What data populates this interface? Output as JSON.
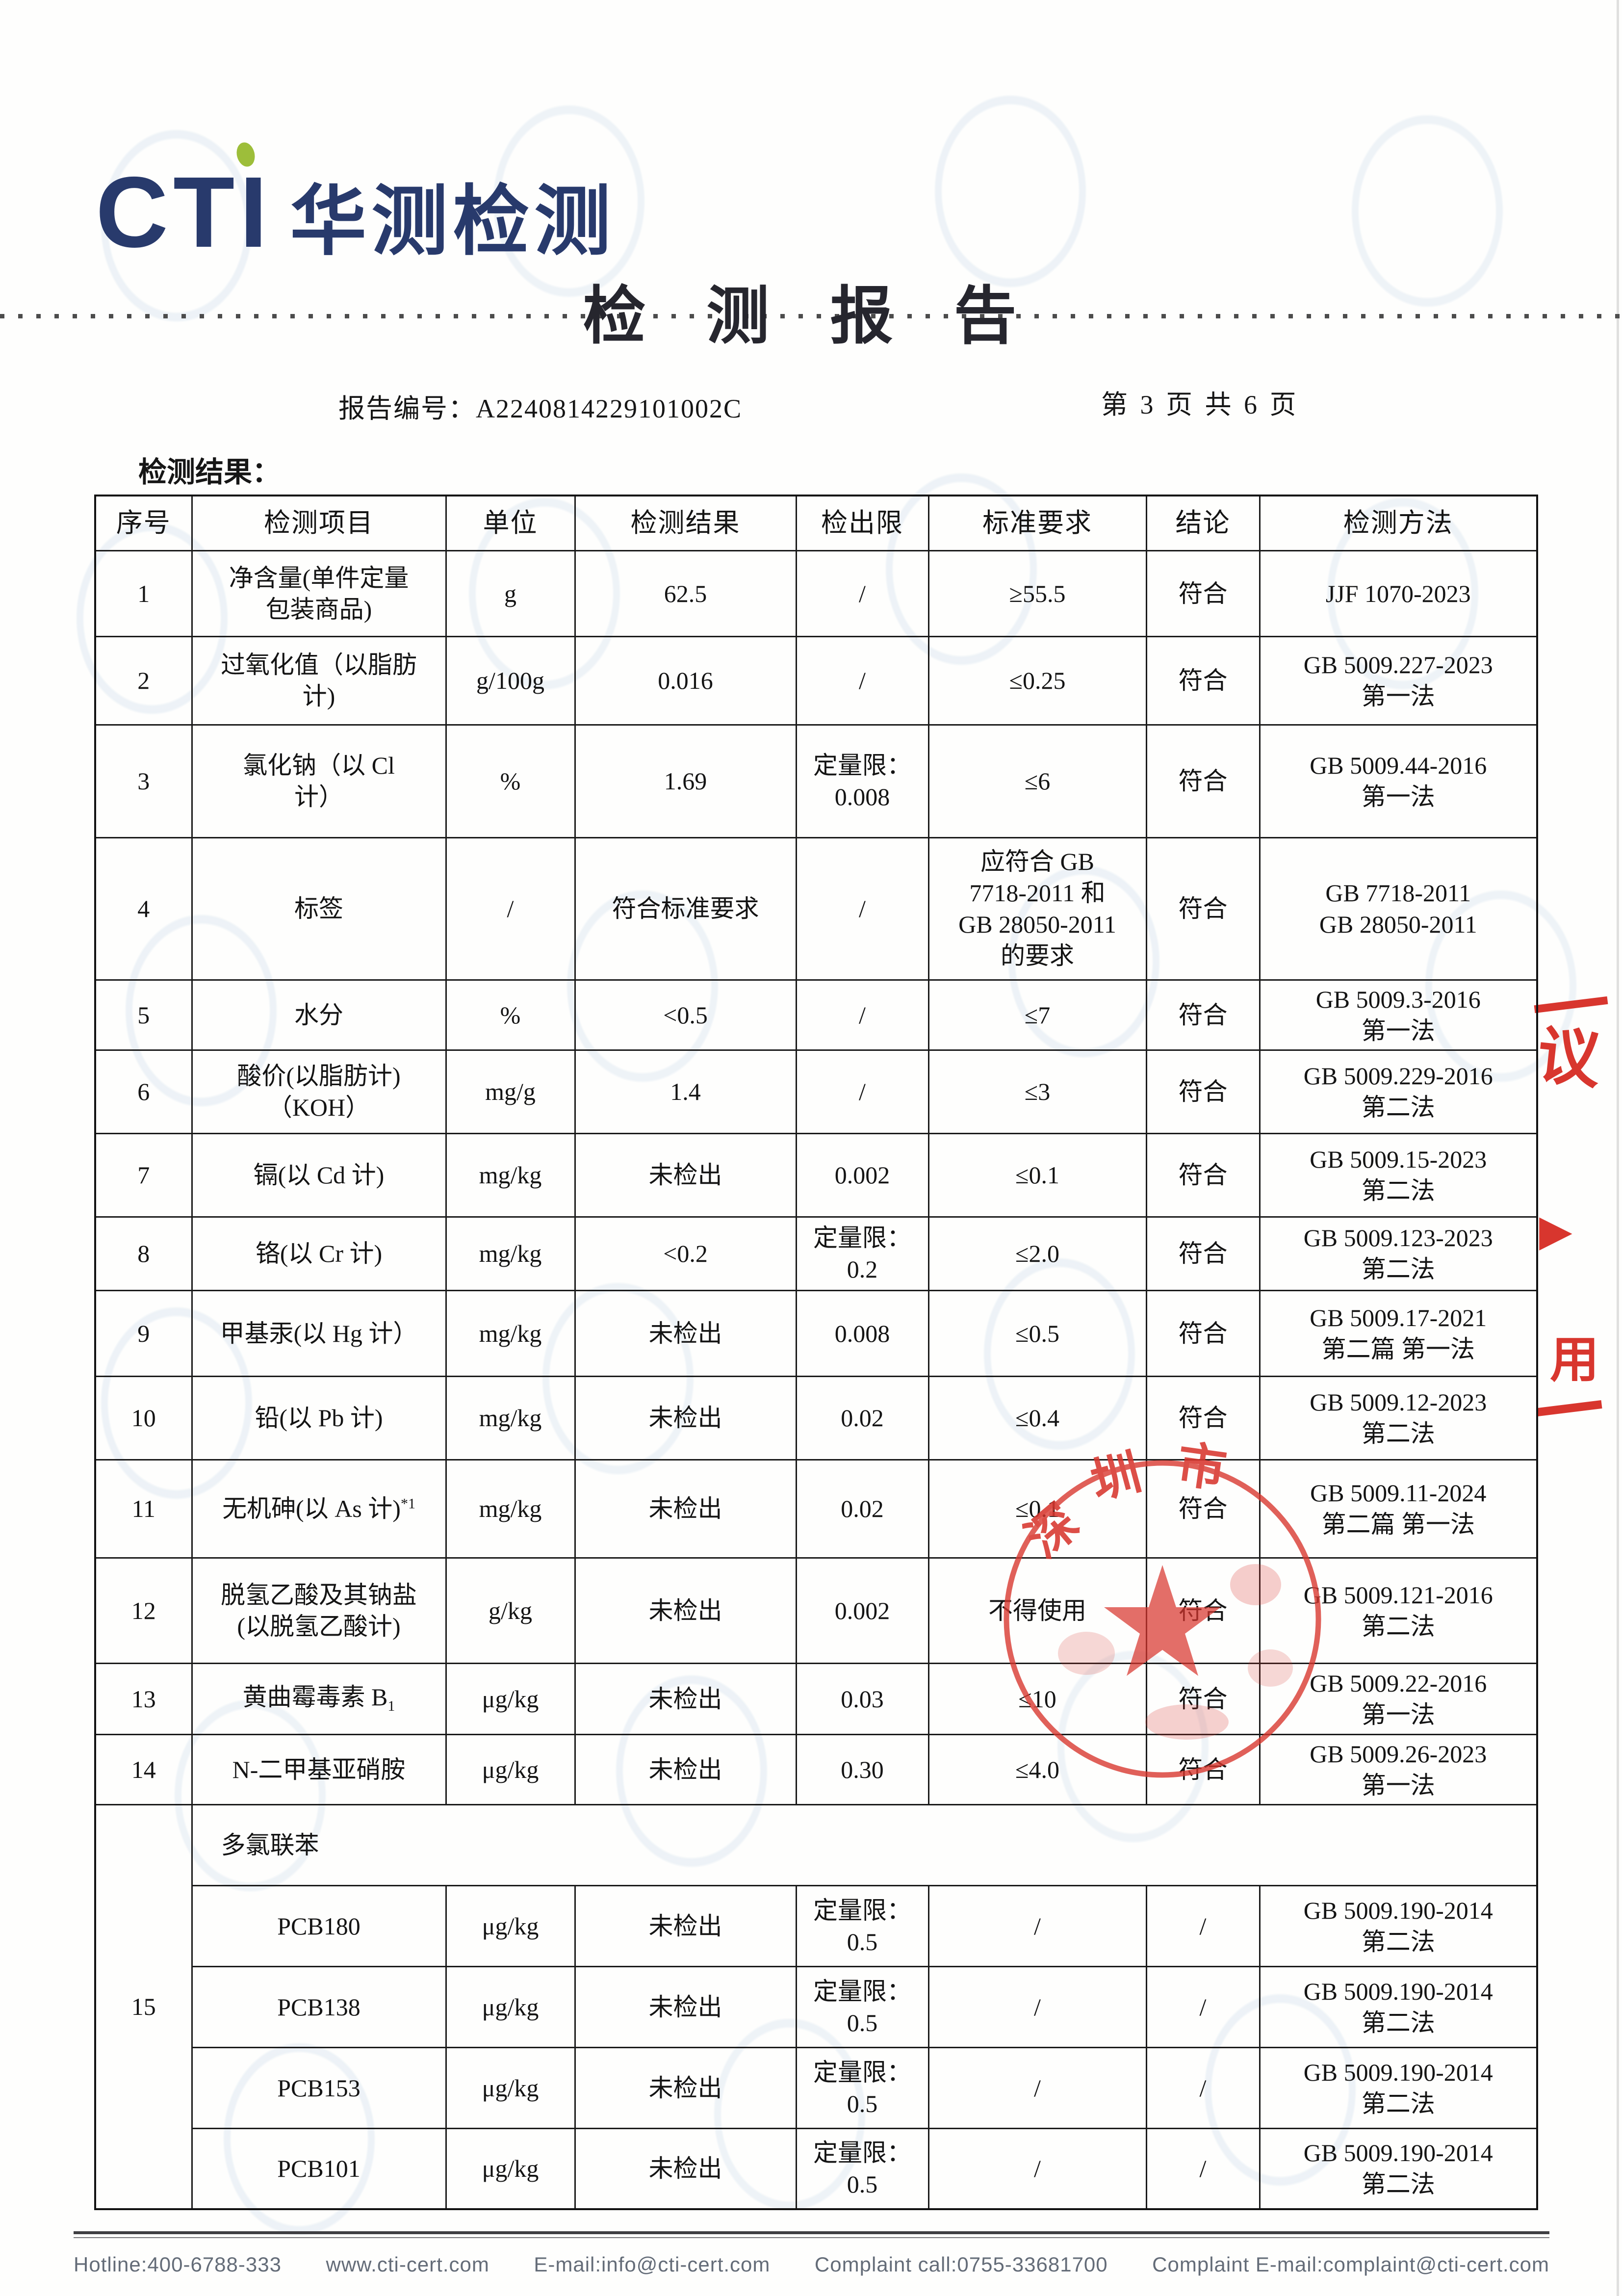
{
  "header": {
    "logo_cti": "CTI",
    "logo_cn": "华测检测",
    "title": "检 测 报 告",
    "report_no_label": "报告编号：",
    "report_no": "A2240814229101002C",
    "page_info": "第 3 页 共 6 页",
    "section_label": "检测结果："
  },
  "table": {
    "columns": [
      "序号",
      "检测项目",
      "单位",
      "检测结果",
      "检出限",
      "标准要求",
      "结论",
      "检测方法"
    ],
    "rows": [
      {
        "no": "1",
        "item": [
          "净含量(单件定量",
          "包装商品)"
        ],
        "unit": "g",
        "result": "62.5",
        "detection_limit": "/",
        "standard": "≥55.5",
        "conclusion": "符合",
        "method": [
          "JJF 1070-2023"
        ]
      },
      {
        "no": "2",
        "item": [
          "过氧化值（以脂肪",
          "计)"
        ],
        "unit": "g/100g",
        "result": "0.016",
        "detection_limit": "/",
        "standard": "≤0.25",
        "conclusion": "符合",
        "method": [
          "GB 5009.227-2023",
          "第一法"
        ]
      },
      {
        "no": "3",
        "item": [
          "氯化钠（以 Cl",
          "计）"
        ],
        "unit": "%",
        "result": "1.69",
        "detection_limit": [
          "定量限：",
          "0.008"
        ],
        "standard": "≤6",
        "conclusion": "符合",
        "method": [
          "GB 5009.44-2016",
          "第一法"
        ]
      },
      {
        "no": "4",
        "item": [
          "标签"
        ],
        "unit": "/",
        "result": "符合标准要求",
        "detection_limit": "/",
        "standard": [
          "应符合 GB",
          "7718-2011 和",
          "GB 28050-2011",
          "的要求"
        ],
        "conclusion": "符合",
        "method": [
          "GB 7718-2011",
          "GB 28050-2011"
        ]
      },
      {
        "no": "5",
        "item": [
          "水分"
        ],
        "unit": "%",
        "result": "<0.5",
        "detection_limit": "/",
        "standard": "≤7",
        "conclusion": "符合",
        "method": [
          "GB 5009.3-2016",
          "第一法"
        ]
      },
      {
        "no": "6",
        "item": [
          "酸价(以脂肪计)",
          "（KOH）"
        ],
        "unit": "mg/g",
        "result": "1.4",
        "detection_limit": "/",
        "standard": "≤3",
        "conclusion": "符合",
        "method": [
          "GB 5009.229-2016",
          "第二法"
        ]
      },
      {
        "no": "7",
        "item": [
          "镉(以 Cd 计)"
        ],
        "unit": "mg/kg",
        "result": "未检出",
        "detection_limit": "0.002",
        "standard": "≤0.1",
        "conclusion": "符合",
        "method": [
          "GB 5009.15-2023",
          "第二法"
        ]
      },
      {
        "no": "8",
        "item": [
          "铬(以 Cr 计)"
        ],
        "unit": "mg/kg",
        "result": "<0.2",
        "detection_limit": [
          "定量限：",
          "0.2"
        ],
        "standard": "≤2.0",
        "conclusion": "符合",
        "method": [
          "GB 5009.123-2023",
          "第二法"
        ]
      },
      {
        "no": "9",
        "item": [
          "甲基汞(以 Hg 计）"
        ],
        "unit": "mg/kg",
        "result": "未检出",
        "detection_limit": "0.008",
        "standard": "≤0.5",
        "conclusion": "符合",
        "method": [
          "GB 5009.17-2021",
          "第二篇 第一法"
        ]
      },
      {
        "no": "10",
        "item": [
          "铅(以 Pb 计)"
        ],
        "unit": "mg/kg",
        "result": "未检出",
        "detection_limit": "0.02",
        "standard": "≤0.4",
        "conclusion": "符合",
        "method": [
          "GB 5009.12-2023",
          "第二法"
        ]
      },
      {
        "no": "11",
        "item": [
          "无机砷(以 As 计)"
        ],
        "item_sup": "*1",
        "unit": "mg/kg",
        "result": "未检出",
        "detection_limit": "0.02",
        "standard": "≤0.1",
        "conclusion": "符合",
        "method": [
          "GB 5009.11-2024",
          "第二篇 第一法"
        ]
      },
      {
        "no": "12",
        "item": [
          "脱氢乙酸及其钠盐",
          "(以脱氢乙酸计)"
        ],
        "unit": "g/kg",
        "result": "未检出",
        "detection_limit": "0.002",
        "standard": "不得使用",
        "conclusion": "符合",
        "method": [
          "GB 5009.121-2016",
          "第二法"
        ]
      },
      {
        "no": "13",
        "item": [
          "黄曲霉毒素 B"
        ],
        "item_sub": "1",
        "unit": "μg/kg",
        "result": "未检出",
        "detection_limit": "0.03",
        "standard": "≤10",
        "conclusion": "符合",
        "method": [
          "GB 5009.22-2016",
          "第一法"
        ]
      },
      {
        "no": "14",
        "item": [
          "N-二甲基亚硝胺"
        ],
        "unit": "μg/kg",
        "result": "未检出",
        "detection_limit": "0.30",
        "standard": "≤4.0",
        "conclusion": "符合",
        "method": [
          "GB 5009.26-2023",
          "第一法"
        ]
      }
    ],
    "group": {
      "no": "15",
      "label": "多氯联苯",
      "sub_rows": [
        {
          "item": [
            "PCB180"
          ],
          "unit": "μg/kg",
          "result": "未检出",
          "detection_limit": [
            "定量限：",
            "0.5"
          ],
          "standard": "/",
          "conclusion": "/",
          "method": [
            "GB 5009.190-2014",
            "第二法"
          ]
        },
        {
          "item": [
            "PCB138"
          ],
          "unit": "μg/kg",
          "result": "未检出",
          "detection_limit": [
            "定量限：",
            "0.5"
          ],
          "standard": "/",
          "conclusion": "/",
          "method": [
            "GB 5009.190-2014",
            "第二法"
          ]
        },
        {
          "item": [
            "PCB153"
          ],
          "unit": "μg/kg",
          "result": "未检出",
          "detection_limit": [
            "定量限：",
            "0.5"
          ],
          "standard": "/",
          "conclusion": "/",
          "method": [
            "GB 5009.190-2014",
            "第二法"
          ]
        },
        {
          "item": [
            "PCB101"
          ],
          "unit": "μg/kg",
          "result": "未检出",
          "detection_limit": [
            "定量限：",
            "0.5"
          ],
          "standard": "/",
          "conclusion": "/",
          "method": [
            "GB 5009.190-2014",
            "第二法"
          ]
        }
      ]
    }
  },
  "stamp": {
    "arc_text": "深圳市",
    "color": "#d8362e"
  },
  "edge_marks": {
    "mark1": "议",
    "mark2": "▶",
    "mark3": "用"
  },
  "footer": {
    "items": [
      "Hotline:400-6788-333",
      "www.cti-cert.com",
      "E-mail:info@cti-cert.com",
      "Complaint call:0755-33681700",
      "Complaint E-mail:complaint@cti-cert.com"
    ]
  }
}
